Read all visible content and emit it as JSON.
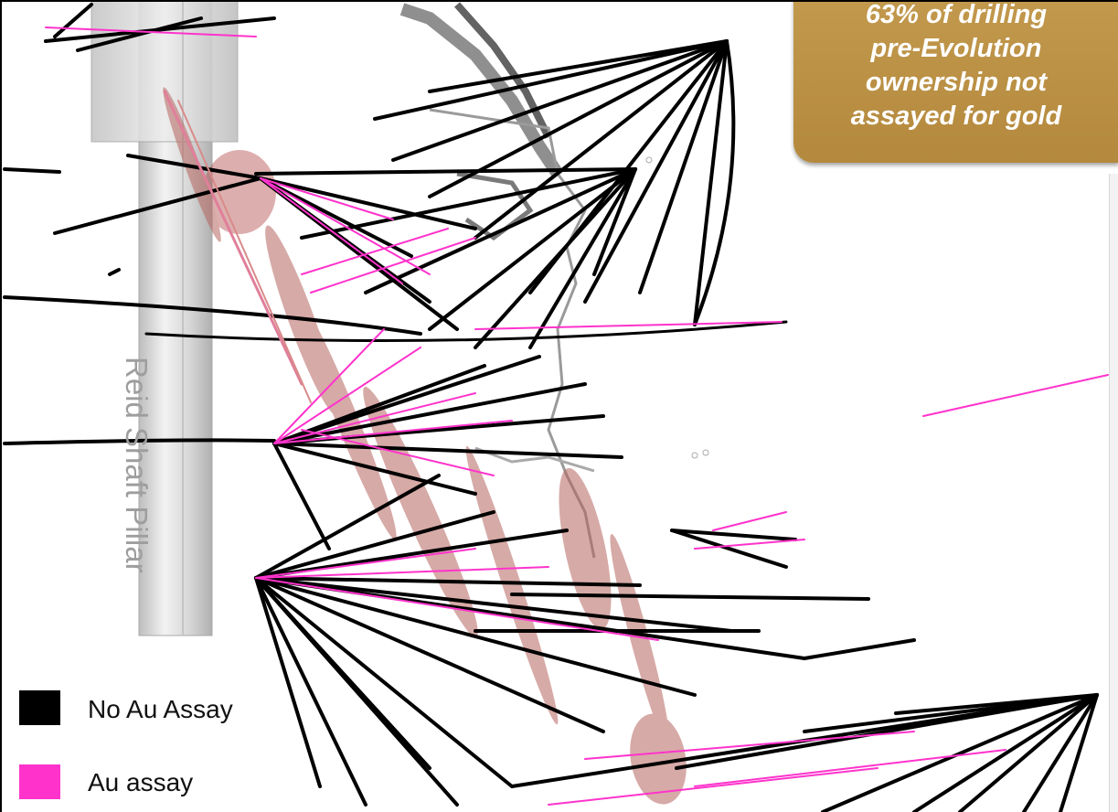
{
  "callout": {
    "text": "63% of drilling\npre-Evolution\nownership not\nassayed for gold"
  },
  "pillar": {
    "label": "Reid Shaft Pillar"
  },
  "legend": {
    "items": [
      {
        "label": "No Au Assay",
        "color": "#000000"
      },
      {
        "label": "Au assay",
        "color": "#ff33cc"
      }
    ]
  },
  "colors": {
    "no_assay": "#000000",
    "assay": "#ff33cc",
    "orebody": "#b5655f",
    "pillar": "#cccccc",
    "workings": "#444444",
    "callout_bg": "#bf9648"
  }
}
